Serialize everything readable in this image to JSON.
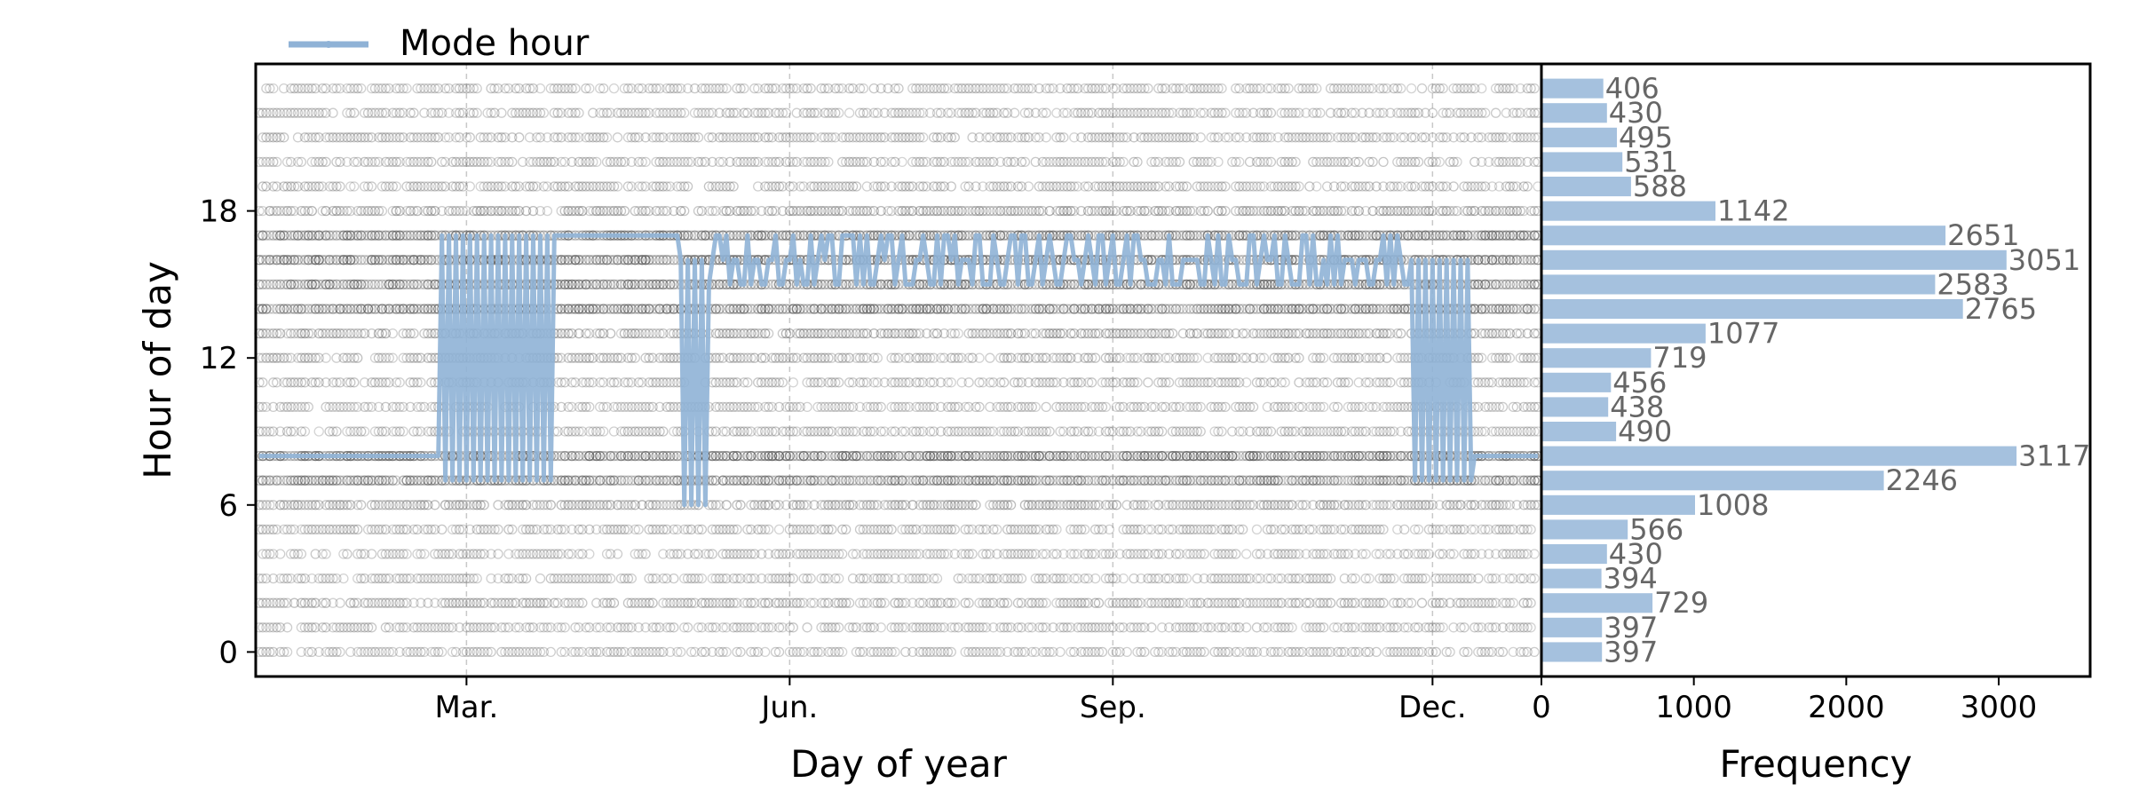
{
  "colors": {
    "scatter_edge": "#555555",
    "mode_line": "#8fb2d6",
    "hist_bar": "#a5c1de",
    "hist_label": "#666666",
    "axis": "#000000",
    "grid": "#c8c8c8"
  },
  "legend": {
    "label": "Mode hour"
  },
  "chart_data": [
    {
      "type": "scatter",
      "xlabel": "Day of year",
      "ylabel": "Hour of day",
      "xticks": [
        {
          "day": 60,
          "label": "Mar."
        },
        {
          "day": 152,
          "label": "Jun."
        },
        {
          "day": 244,
          "label": "Sep."
        },
        {
          "day": 335,
          "label": "Dec."
        }
      ],
      "yticks": [
        0,
        6,
        12,
        18
      ],
      "xlim": [
        0,
        366
      ],
      "ylim": [
        -1,
        24
      ],
      "grid": "vertical dashed at month ticks",
      "legend_position": "top-left, outside plot",
      "series": [
        {
          "name": "Mode hour",
          "kind": "line",
          "mode_hour_by_day_range": [
            {
              "from_day": 1,
              "to_day": 52,
              "hour": 8
            },
            {
              "from_day": 53,
              "to_day": 85,
              "hour": "alternating 7-17"
            },
            {
              "from_day": 86,
              "to_day": 120,
              "hour": 17
            },
            {
              "from_day": 121,
              "to_day": 128,
              "hour": "alternating 6-16"
            },
            {
              "from_day": 129,
              "to_day": 328,
              "hour": "mostly 15-17"
            },
            {
              "from_day": 329,
              "to_day": 346,
              "hour": "alternating 7-16"
            },
            {
              "from_day": 347,
              "to_day": 365,
              "hour": 8
            }
          ]
        }
      ]
    },
    {
      "type": "bar",
      "orientation": "horizontal",
      "xlabel": "Frequency",
      "xticks": [
        0,
        1000,
        2000,
        3000
      ],
      "xlim": [
        0,
        3600
      ],
      "categories": [
        0,
        1,
        2,
        3,
        4,
        5,
        6,
        7,
        8,
        9,
        10,
        11,
        12,
        13,
        14,
        15,
        16,
        17,
        18,
        19,
        20,
        21,
        22,
        23
      ],
      "values": [
        397,
        397,
        729,
        394,
        430,
        566,
        1008,
        2246,
        3117,
        490,
        438,
        456,
        719,
        1077,
        2765,
        2583,
        3051,
        2651,
        1142,
        588,
        531,
        495,
        430,
        406
      ]
    }
  ]
}
